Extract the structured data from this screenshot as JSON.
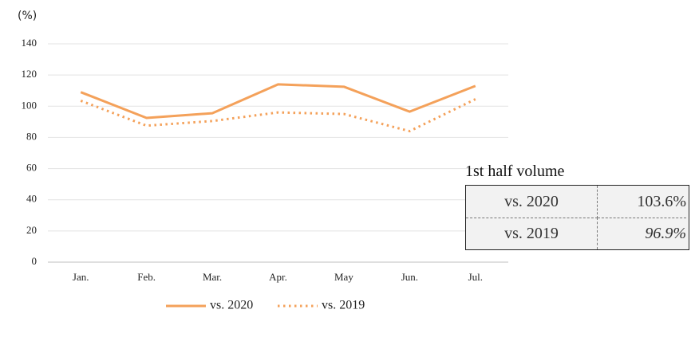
{
  "chart_data": {
    "type": "line",
    "y_axis_label": "(%)",
    "categories": [
      "Jan.",
      "Feb.",
      "Mar.",
      "Apr.",
      "May",
      "Jun.",
      "Jul."
    ],
    "series": [
      {
        "name": "vs. 2020",
        "color": "#f4a15a",
        "style": "solid",
        "values": [
          109,
          92.5,
          95.5,
          114,
          112.5,
          96.5,
          113
        ]
      },
      {
        "name": "vs. 2019",
        "color": "#f4a15a",
        "style": "dotted",
        "values": [
          103.5,
          87.5,
          90.5,
          96,
          95,
          84,
          104.5
        ]
      }
    ],
    "ylim": [
      0,
      140
    ],
    "yticks": [
      0,
      20,
      40,
      60,
      80,
      100,
      120,
      140
    ],
    "grid": true,
    "legend": "bottom"
  },
  "table": {
    "title": "1st half volume",
    "rows": [
      [
        "vs. 2020",
        "103.6%"
      ],
      [
        "vs. 2019",
        "96.9%"
      ]
    ]
  }
}
